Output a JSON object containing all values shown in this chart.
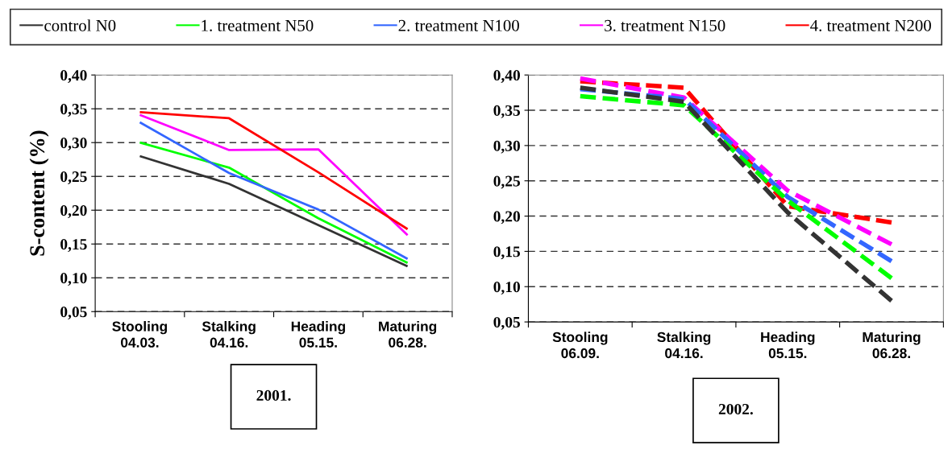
{
  "chart_data": [
    {
      "type": "line",
      "title": "2001.",
      "ylabel": "S-content (%)",
      "line_style": "solid",
      "grid": "y",
      "legend": "top",
      "categories": [
        "Stooling\n04.03.",
        "Stalking\n04.16.",
        "Heading\n05.15.",
        "Maturing\n06.28."
      ],
      "ylim": [
        0.05,
        0.4
      ],
      "yticks": [
        {
          "value": 0.05,
          "label": "0,05"
        },
        {
          "value": 0.1,
          "label": "0,10"
        },
        {
          "value": 0.15,
          "label": "0,15"
        },
        {
          "value": 0.2,
          "label": "0,20"
        },
        {
          "value": 0.25,
          "label": "0,25"
        },
        {
          "value": 0.3,
          "label": "0,30"
        },
        {
          "value": 0.35,
          "label": "0,35"
        },
        {
          "value": 0.4,
          "label": "0,40"
        }
      ],
      "series": [
        {
          "name": "control N0",
          "color": "#333333",
          "values": [
            0.28,
            0.239,
            0.178,
            0.117
          ]
        },
        {
          "name": "1. treatment N50",
          "color": "#00ff00",
          "values": [
            0.3,
            0.263,
            0.188,
            0.122
          ]
        },
        {
          "name": "2. treatment N100",
          "color": "#3366ff",
          "values": [
            0.33,
            0.255,
            0.201,
            0.128
          ]
        },
        {
          "name": "3. treatment N150",
          "color": "#ff00ff",
          "values": [
            0.341,
            0.289,
            0.29,
            0.163
          ]
        },
        {
          "name": "4. treatment N200",
          "color": "#ff0000",
          "values": [
            0.345,
            0.336,
            0.256,
            0.172
          ]
        }
      ]
    },
    {
      "type": "line",
      "title": "2002.",
      "line_style": "dashed",
      "grid": "y",
      "legend": "top",
      "categories": [
        "Stooling\n06.09.",
        "Stalking\n04.16.",
        "Heading\n05.15.",
        "Maturing\n06.28."
      ],
      "ylim": [
        0.05,
        0.4
      ],
      "yticks": [
        {
          "value": 0.05,
          "label": "0,05"
        },
        {
          "value": 0.1,
          "label": "0,10"
        },
        {
          "value": 0.15,
          "label": "0,15"
        },
        {
          "value": 0.2,
          "label": "0,20"
        },
        {
          "value": 0.25,
          "label": "0,25"
        },
        {
          "value": 0.3,
          "label": "0,30"
        },
        {
          "value": 0.35,
          "label": "0,35"
        },
        {
          "value": 0.4,
          "label": "0,40"
        }
      ],
      "series": [
        {
          "name": "control N0",
          "color": "#333333",
          "values": [
            0.382,
            0.362,
            0.205,
            0.08
          ]
        },
        {
          "name": "1. treatment N50",
          "color": "#00ff00",
          "values": [
            0.37,
            0.357,
            0.222,
            0.112
          ]
        },
        {
          "name": "2. treatment N100",
          "color": "#3366ff",
          "values": [
            0.38,
            0.366,
            0.227,
            0.136
          ]
        },
        {
          "name": "3. treatment N150",
          "color": "#ff00ff",
          "values": [
            0.395,
            0.368,
            0.236,
            0.16
          ]
        },
        {
          "name": "4. treatment N200",
          "color": "#ff0000",
          "values": [
            0.391,
            0.382,
            0.214,
            0.191
          ]
        }
      ]
    }
  ]
}
